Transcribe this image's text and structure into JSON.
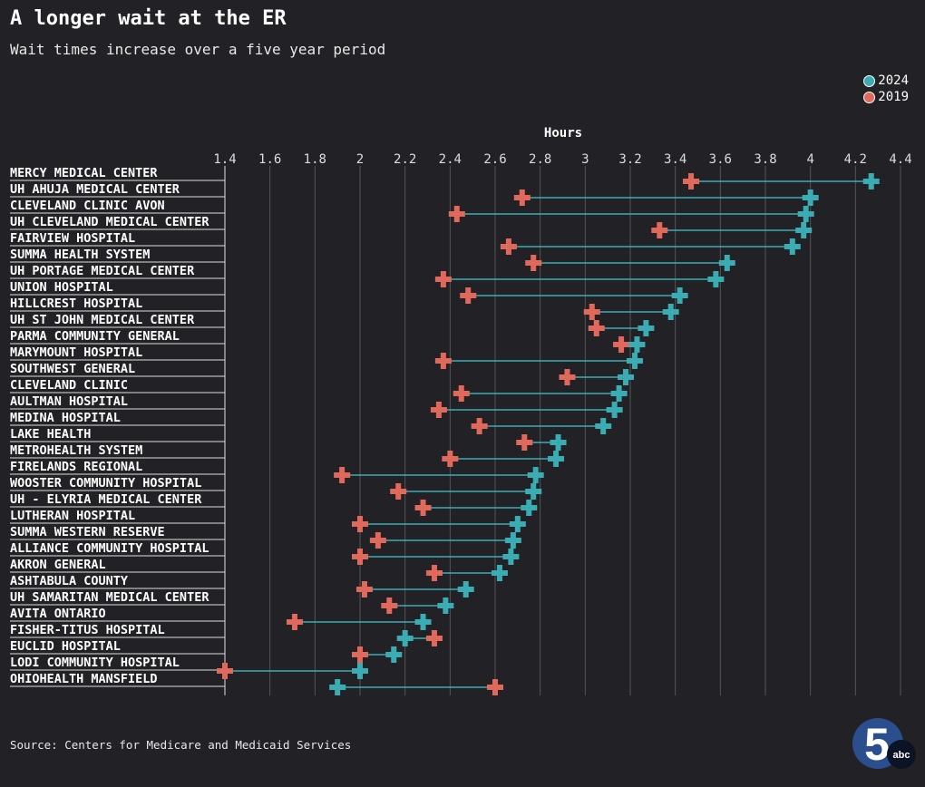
{
  "title": "A longer wait at the ER",
  "subtitle": "Wait times increase over a five year period",
  "source": "Source: Centers for Medicare and Medicaid Services",
  "logo": {
    "text": "5",
    "sub": "abc"
  },
  "colors": {
    "background": "#222226",
    "y2024": "#3aadb4",
    "y2019": "#e0695c",
    "grid": "#555"
  },
  "chart_data": {
    "type": "dumbbell",
    "xlabel": "Hours",
    "xlim": [
      1.4,
      4.4
    ],
    "xticks": [
      "1.4",
      "1.6",
      "1.8",
      "2",
      "2.2",
      "2.4",
      "2.6",
      "2.8",
      "3",
      "3.2",
      "3.4",
      "3.6",
      "3.8",
      "4",
      "4.2",
      "4.4"
    ],
    "grid": true,
    "legend": {
      "placement": "top-right",
      "entries": [
        "2024",
        "2019"
      ]
    },
    "categories": [
      "MERCY MEDICAL CENTER",
      "UH AHUJA MEDICAL CENTER",
      "CLEVELAND CLINIC AVON",
      "UH CLEVELAND MEDICAL CENTER",
      "FAIRVIEW HOSPITAL",
      "SUMMA HEALTH SYSTEM",
      "UH PORTAGE MEDICAL CENTER",
      "UNION HOSPITAL",
      "HILLCREST HOSPITAL",
      "UH ST JOHN MEDICAL CENTER",
      "PARMA COMMUNITY GENERAL",
      "MARYMOUNT HOSPITAL",
      "SOUTHWEST GENERAL",
      "CLEVELAND CLINIC",
      "AULTMAN HOSPITAL",
      "MEDINA HOSPITAL",
      "LAKE HEALTH",
      "METROHEALTH SYSTEM",
      "FIRELANDS REGIONAL",
      "WOOSTER COMMUNITY HOSPITAL",
      "UH - ELYRIA MEDICAL CENTER",
      "LUTHERAN HOSPITAL",
      "SUMMA WESTERN RESERVE",
      "ALLIANCE COMMUNITY HOSPITAL",
      "AKRON GENERAL",
      "ASHTABULA COUNTY",
      "UH SAMARITAN MEDICAL CENTER",
      "AVITA ONTARIO",
      "FISHER-TITUS HOSPITAL",
      "EUCLID HOSPITAL",
      "LODI COMMUNITY HOSPITAL",
      "OHIOHEALTH MANSFIELD"
    ],
    "series": [
      {
        "name": "2024",
        "values": [
          4.27,
          4.0,
          3.98,
          3.97,
          3.92,
          3.63,
          3.58,
          3.42,
          3.38,
          3.27,
          3.23,
          3.22,
          3.18,
          3.15,
          3.13,
          3.08,
          2.88,
          2.87,
          2.78,
          2.77,
          2.75,
          2.7,
          2.68,
          2.67,
          2.62,
          2.47,
          2.38,
          2.28,
          2.2,
          2.15,
          2.0,
          1.9
        ]
      },
      {
        "name": "2019",
        "values": [
          3.47,
          2.72,
          2.43,
          3.33,
          2.66,
          2.77,
          2.37,
          2.48,
          3.03,
          3.05,
          3.16,
          2.37,
          2.92,
          2.45,
          2.35,
          2.53,
          2.73,
          2.4,
          1.92,
          2.17,
          2.28,
          2.0,
          2.08,
          2.0,
          2.33,
          2.02,
          2.13,
          1.71,
          2.33,
          2.0,
          1.4,
          2.6
        ]
      }
    ]
  }
}
